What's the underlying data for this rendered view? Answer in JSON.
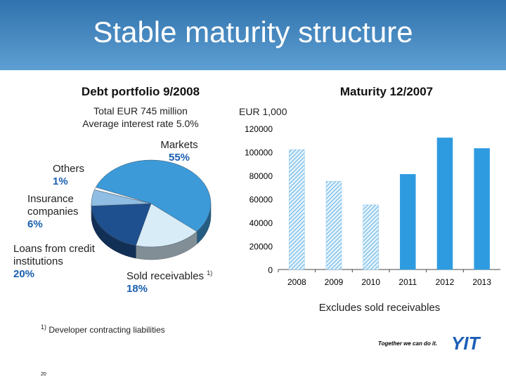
{
  "slide": {
    "title": "Stable maturity structure",
    "page_number": "20",
    "footnote": {
      "marker": "1)",
      "text": "Developer contracting liabilities"
    },
    "logo": {
      "tagline": "Together we can do it.",
      "brand": "YIT"
    }
  },
  "chart_data": [
    {
      "type": "pie",
      "title": "Debt portfolio 9/2008",
      "subtitle": [
        "Total EUR 745 million",
        "Average interest rate 5.0%"
      ],
      "categories": [
        "Markets",
        "Sold receivables",
        "Loans from credit institutions",
        "Insurance companies",
        "Others"
      ],
      "category_notes": [
        null,
        "1)",
        null,
        null,
        null
      ],
      "values": [
        55,
        18,
        20,
        6,
        1
      ],
      "value_labels": [
        "55%",
        "18%",
        "20%",
        "6%",
        "1%"
      ],
      "colors": [
        "#3c9ad8",
        "#d8ecf8",
        "#1e4f8e",
        "#8fbde3",
        "#f4f8fb"
      ]
    },
    {
      "type": "bar",
      "title": "Maturity 12/2007",
      "ylabel": "EUR 1,000",
      "categories": [
        "2008",
        "2009",
        "2010",
        "2011",
        "2012",
        "2013"
      ],
      "values": [
        102000,
        75000,
        55000,
        81000,
        112000,
        103000
      ],
      "hatched": [
        true,
        true,
        true,
        false,
        false,
        false
      ],
      "color": "#2e9be0",
      "ylim": [
        0,
        120000
      ],
      "yticks": [
        0,
        20000,
        40000,
        60000,
        80000,
        100000,
        120000
      ],
      "grid": false,
      "annotation": "Excludes sold receivables"
    }
  ]
}
